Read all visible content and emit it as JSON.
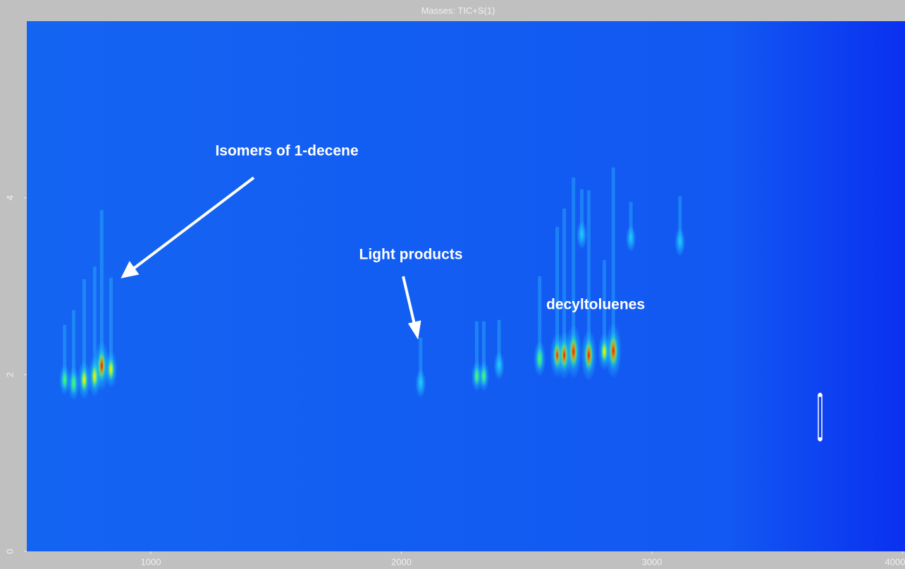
{
  "chart_data": {
    "type": "blobs",
    "title": "Masses: TIC+S(1)",
    "xlim": [
      505,
      4010
    ],
    "ylim": [
      0,
      6
    ],
    "xticks": [
      1000,
      2000,
      3000,
      4000
    ],
    "yticks": [
      0,
      2,
      4
    ],
    "x": [
      656,
      692,
      734,
      776,
      804,
      841,
      2077,
      2301,
      2329,
      2390,
      2552,
      2622,
      2650,
      2687,
      2748,
      2810,
      2846,
      2720,
      2916,
      3112
    ],
    "y": [
      1.94,
      1.9,
      1.94,
      1.98,
      2.1,
      2.06,
      1.9,
      1.98,
      1.98,
      2.1,
      2.18,
      2.22,
      2.22,
      2.26,
      2.22,
      2.26,
      2.27,
      3.58,
      3.54,
      3.5
    ],
    "values": [
      0.3,
      0.4,
      0.55,
      0.6,
      0.85,
      0.5,
      0.25,
      0.3,
      0.3,
      0.25,
      0.45,
      0.7,
      0.8,
      0.95,
      0.9,
      0.5,
      1.0,
      0.25,
      0.2,
      0.25
    ],
    "annotations": [
      "Isomers of 1-decene",
      "Light products",
      "decyltoluenes"
    ]
  }
}
